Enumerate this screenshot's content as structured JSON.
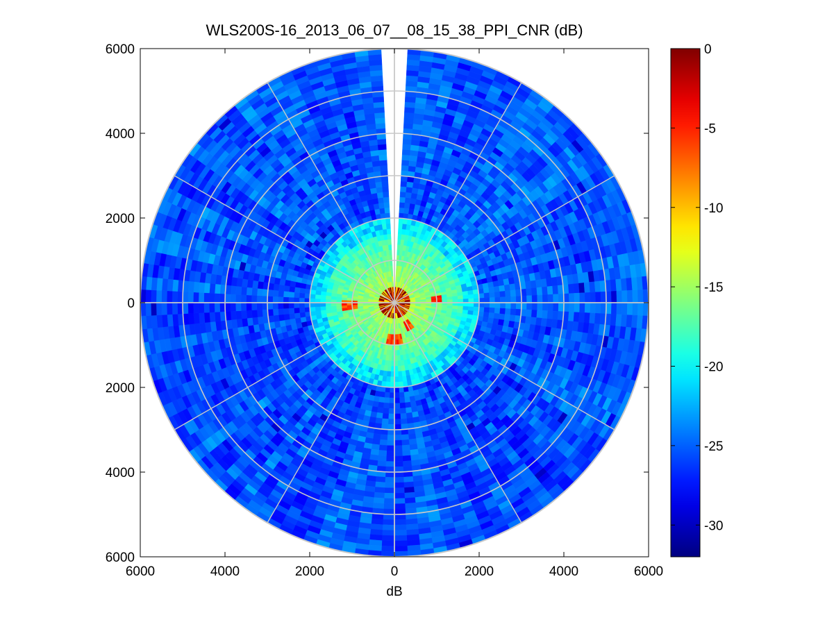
{
  "chart_data": {
    "type": "heatmap",
    "subtype": "polar-ppi",
    "title": "WLS200S-16_2013_06_07__08_15_38_PPI_CNR (dB)",
    "xlabel": "dB",
    "ylabel": "",
    "xlim": [
      -6000,
      6000
    ],
    "ylim": [
      -6000,
      6000
    ],
    "x_ticks": [
      "6000",
      "4000",
      "2000",
      "0",
      "2000",
      "4000",
      "6000"
    ],
    "y_ticks": [
      "6000",
      "4000",
      "2000",
      "0",
      "2000",
      "4000",
      "6000"
    ],
    "x_tick_values": [
      -6000,
      -4000,
      -2000,
      0,
      2000,
      4000,
      6000
    ],
    "y_tick_values": [
      6000,
      4000,
      2000,
      0,
      -2000,
      -4000,
      -6000
    ],
    "max_range": 6000,
    "range_rings": [
      1000,
      2000,
      3000,
      4000,
      5000,
      6000
    ],
    "spoke_angles_deg": [
      0,
      30,
      60,
      90,
      120,
      150,
      180,
      210,
      240,
      270,
      300,
      330
    ],
    "blocked_sector_deg": [
      -4,
      4
    ],
    "colorbar": {
      "colormap": "jet",
      "min": -32,
      "max": 0,
      "tick_values": [
        0,
        -5,
        -10,
        -15,
        -20,
        -25,
        -30
      ],
      "tick_labels": [
        "0",
        "-5",
        "-10",
        "-15",
        "-20",
        "-25",
        "-30"
      ]
    },
    "field_description": "CNR values: about -26 dB in the outer region, -13 to -16 dB within ~1500 m, saturated (-2 to 0 dB) near the center",
    "grid": true,
    "colors": {
      "grid": "#c8c8c8",
      "axes": "#000000",
      "background": "#ffffff"
    }
  }
}
